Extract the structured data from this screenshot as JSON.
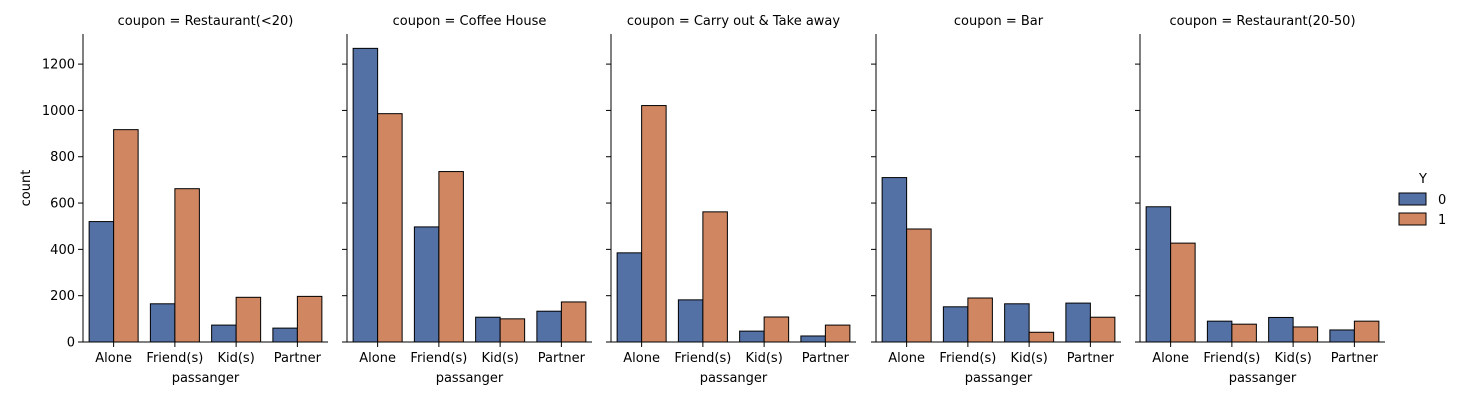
{
  "chart_data": {
    "type": "bar",
    "facet_label": "coupon",
    "xlabel": "passanger",
    "ylabel": "count",
    "ylim": [
      0,
      1330
    ],
    "yticks": [
      0,
      200,
      400,
      600,
      800,
      1000,
      1200
    ],
    "categories": [
      "Alone",
      "Friend(s)",
      "Kid(s)",
      "Partner"
    ],
    "legend": {
      "title": "Y",
      "placement": "right",
      "entries": [
        {
          "name": "0",
          "color": "#5471a6"
        },
        {
          "name": "1",
          "color": "#cf8661"
        }
      ]
    },
    "panels": [
      {
        "title": "coupon = Restaurant(<20)",
        "series": [
          {
            "name": "0",
            "values": [
              520,
              165,
              73,
              60
            ]
          },
          {
            "name": "1",
            "values": [
              917,
              662,
              193,
              197
            ]
          }
        ]
      },
      {
        "title": "coupon = Coffee House",
        "series": [
          {
            "name": "0",
            "values": [
              1268,
              497,
              107,
              133
            ]
          },
          {
            "name": "1",
            "values": [
              986,
              736,
              100,
              173
            ]
          }
        ]
      },
      {
        "title": "coupon = Carry out & Take away",
        "series": [
          {
            "name": "0",
            "values": [
              385,
              182,
              47,
              26
            ]
          },
          {
            "name": "1",
            "values": [
              1021,
              562,
              108,
              73
            ]
          }
        ]
      },
      {
        "title": "coupon = Bar",
        "series": [
          {
            "name": "0",
            "values": [
              710,
              152,
              165,
              168
            ]
          },
          {
            "name": "1",
            "values": [
              488,
              190,
              42,
              107
            ]
          }
        ]
      },
      {
        "title": "coupon = Restaurant(20-50)",
        "series": [
          {
            "name": "0",
            "values": [
              584,
              90,
              106,
              52
            ]
          },
          {
            "name": "1",
            "values": [
              427,
              77,
              65,
              90
            ]
          }
        ]
      }
    ]
  }
}
